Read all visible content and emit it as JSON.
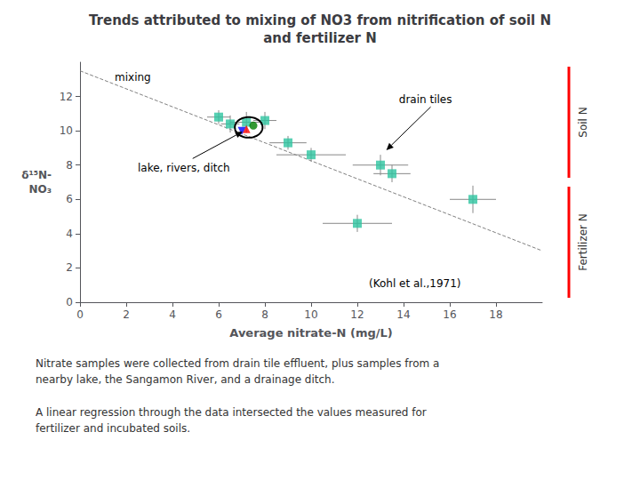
{
  "chart_data": {
    "type": "scatter",
    "title": "Trends attributed to mixing of NO3 from nitrification of soil N\nand fertilizer N",
    "xlabel": "Average nitrate-N (mg/L)",
    "ylabel": "δ¹⁵N-\nNO₃",
    "xlim": [
      0,
      20
    ],
    "ylim": [
      0,
      14
    ],
    "xticks": [
      0,
      2,
      4,
      6,
      8,
      10,
      12,
      14,
      16,
      18
    ],
    "yticks": [
      0,
      2,
      4,
      6,
      8,
      10,
      12
    ],
    "grid": false,
    "series": [
      {
        "type": "line",
        "color": "gray",
        "line_style": "dashed",
        "x": [
          0,
          20
        ],
        "values": [
          13.5,
          3.0
        ]
      },
      {
        "type": "scatter",
        "color": "#2ec4a0",
        "marker": "square",
        "x": [
          6.0,
          6.5,
          7.2,
          8.0,
          9.0,
          10.0,
          12.0,
          13.0,
          13.5,
          17.0
        ],
        "values": [
          10.8,
          10.4,
          10.5,
          10.6,
          9.3,
          8.6,
          4.6,
          8.0,
          7.5,
          6.0
        ],
        "xerr": [
          0.5,
          0.4,
          0.7,
          0.5,
          0.8,
          1.5,
          1.5,
          1.2,
          0.8,
          1.0
        ],
        "yerr": [
          0.4,
          0.5,
          0.6,
          0.5,
          0.4,
          0.4,
          0.5,
          0.6,
          0.5,
          0.8
        ]
      },
      {
        "type": "scatter",
        "color": "#008000",
        "marker": "circle",
        "x": [
          7.5
        ],
        "values": [
          10.3
        ]
      },
      {
        "type": "scatter",
        "color": "#ff0000",
        "marker": "triangle_up",
        "x": [
          7.2
        ],
        "values": [
          10.1
        ]
      },
      {
        "type": "scatter",
        "color": "#0000ff",
        "marker": "triangle_down",
        "x": [
          7.0
        ],
        "values": [
          10.0
        ]
      }
    ],
    "circle": {
      "x": 7.3,
      "y": 10.2,
      "radius": 0.6
    },
    "annotations": [
      {
        "text": "mixing",
        "x": 1.5,
        "y": 12.8
      },
      {
        "text": "drain tiles",
        "x": 13.8,
        "y": 11.5,
        "arrow_x": 13.2,
        "arrow_y": 8.8
      },
      {
        "text": "lake, rivers, ditch",
        "x": 2.5,
        "y": 7.5,
        "arrow_x": 7.1,
        "arrow_y": 10.0
      },
      {
        "text": "(Kohl et al.,1971)",
        "x": 12.5,
        "y": 0.8
      }
    ],
    "side_labels": [
      {
        "text": "Soil N",
        "color": "red"
      },
      {
        "text": "Fertilizer N",
        "color": "red"
      }
    ],
    "notes": [
      "Nitrate samples were collected from drain tile effluent, plus samples from a\nnearby lake, the Sangamon River, and a drainage ditch.",
      "A linear regression through the data intersected the values measured for\nfertilizer and incubated soils."
    ]
  }
}
